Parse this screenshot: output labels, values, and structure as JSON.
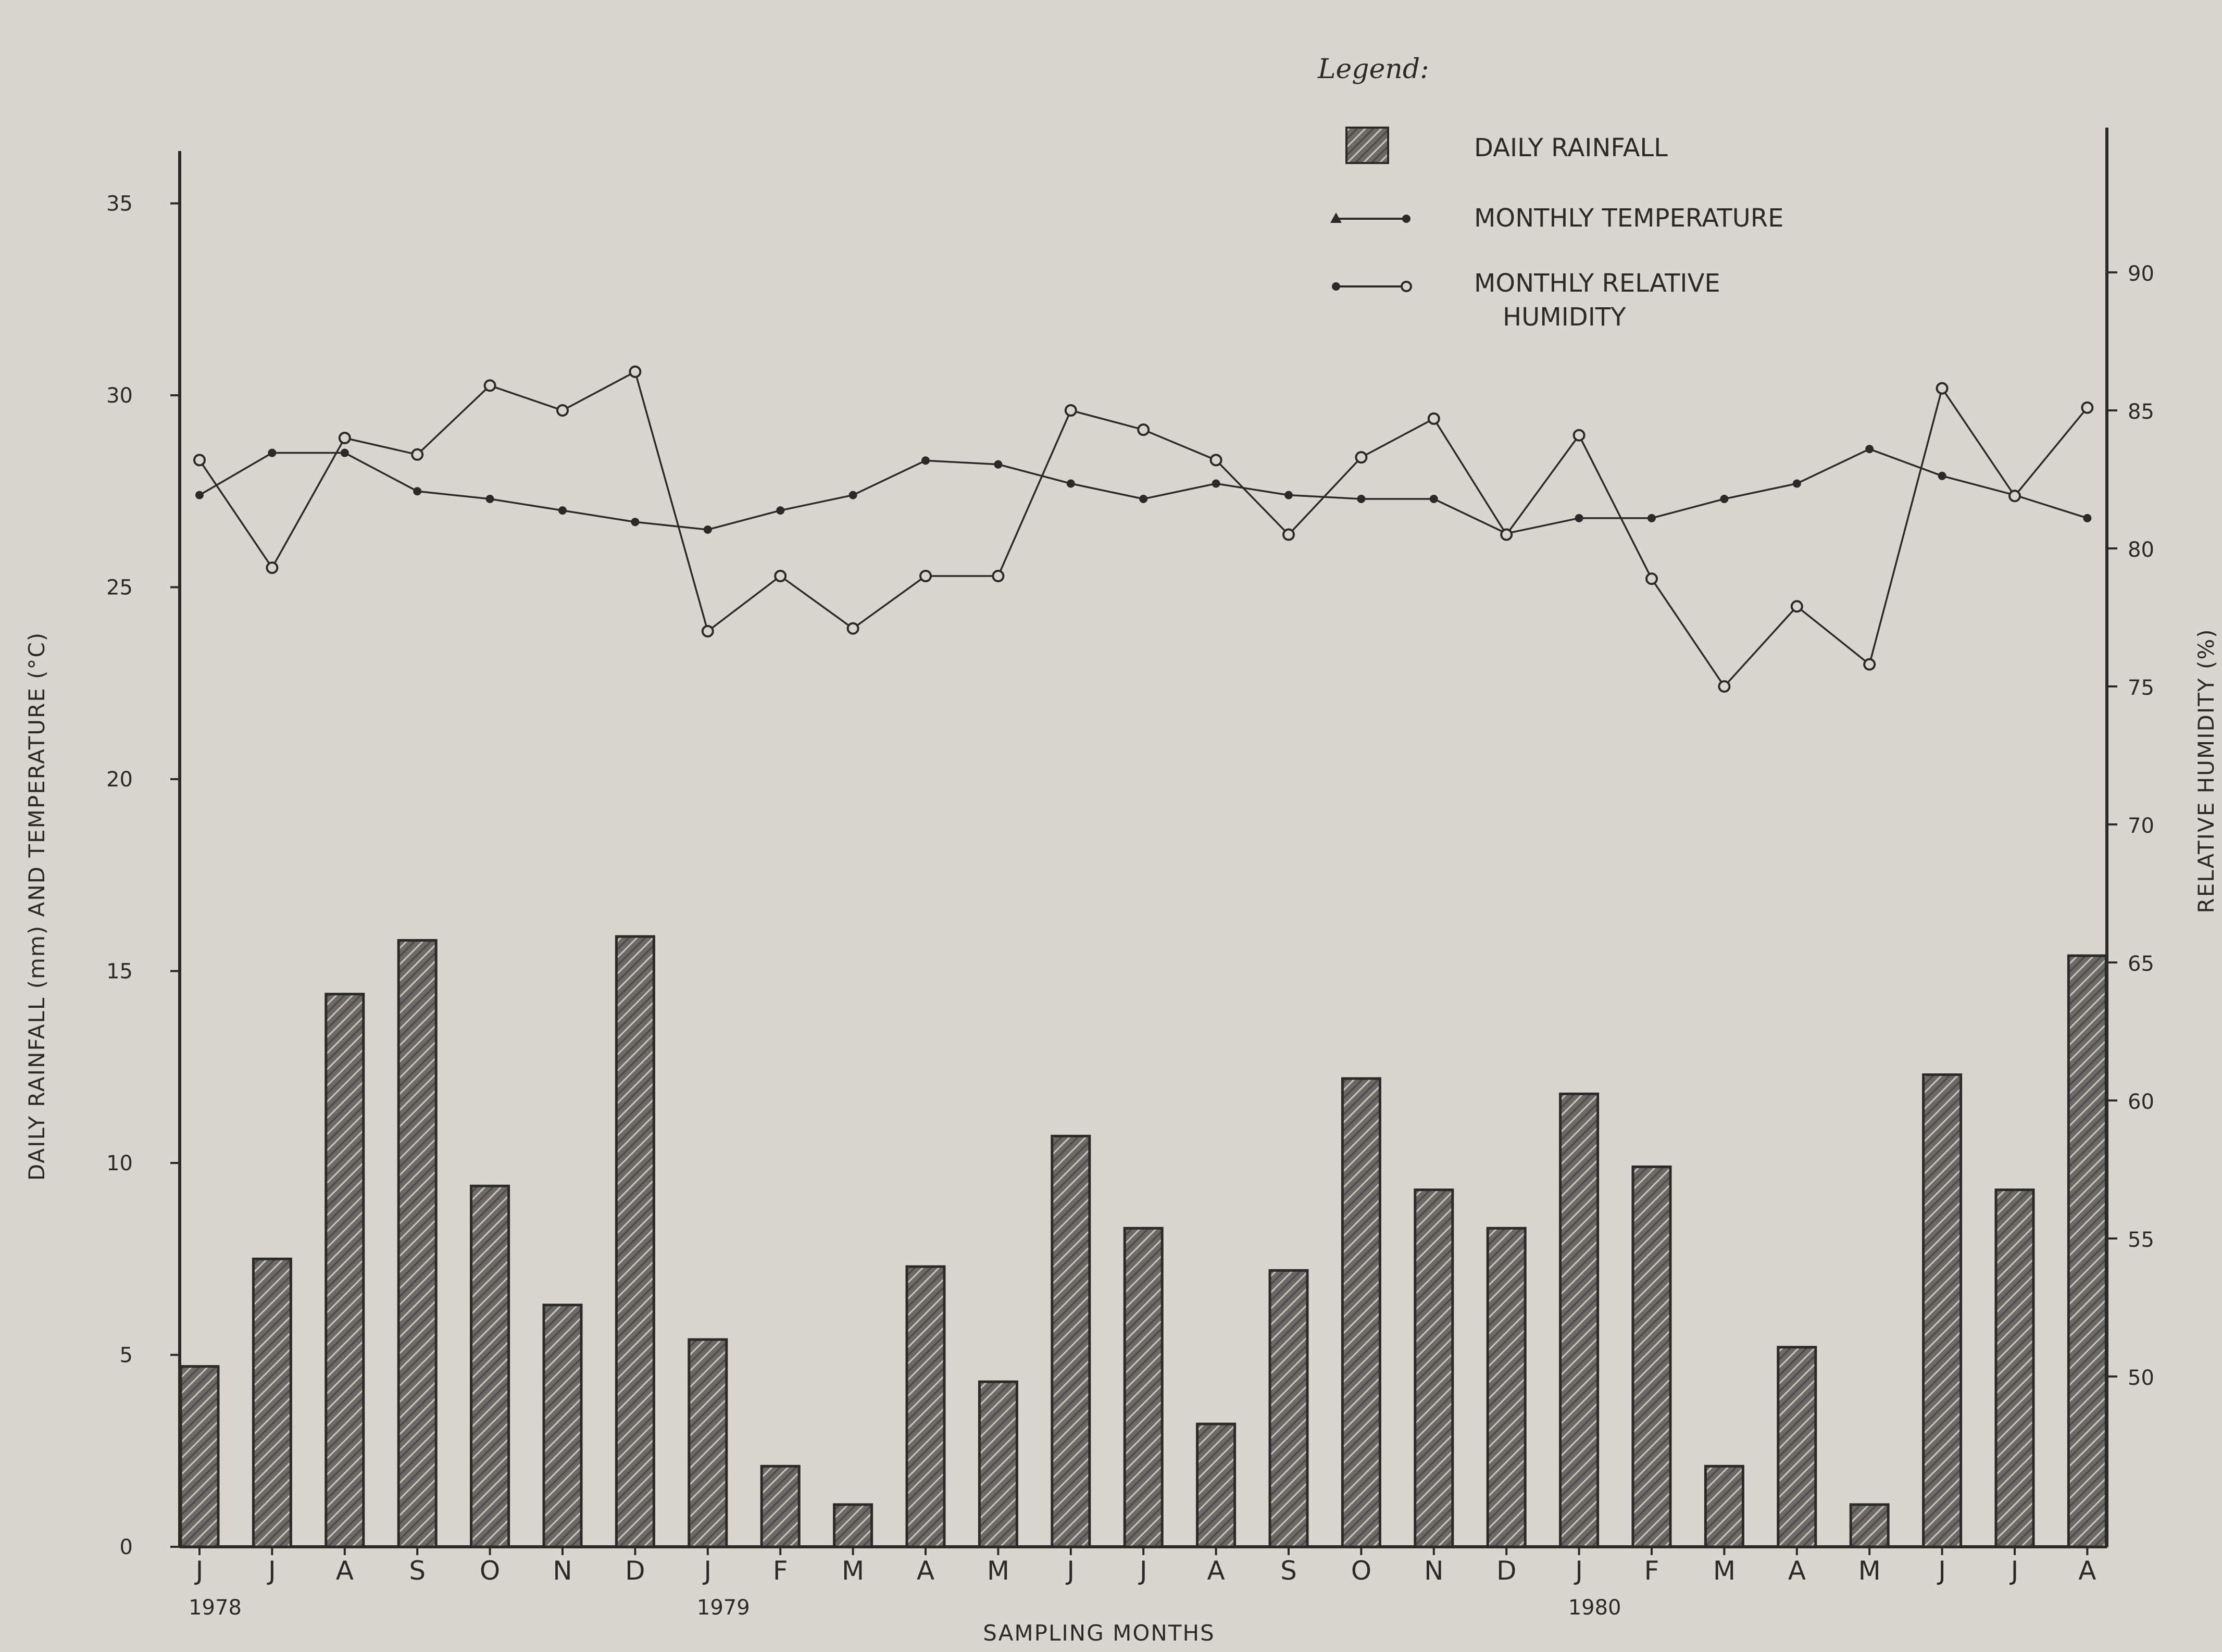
{
  "chart_data": {
    "type": "bar",
    "title": "",
    "legend": {
      "title": "Legend:",
      "placement": "top-right",
      "entries": [
        {
          "key": "rainfall",
          "label": "DAILY RAINFALL"
        },
        {
          "key": "temperature",
          "label": "MONTHLY TEMPERATURE"
        },
        {
          "key": "humidity",
          "label_line1": "MONTHLY RELATIVE",
          "label_line2": "HUMIDITY"
        }
      ]
    },
    "xlabel": "SAMPLING MONTHS",
    "ylabel_left": "DAILY RAINFALL (mm) AND TEMPERATURE (°C)",
    "ylabel_right": "RELATIVE HUMIDITY (%)",
    "ylim_left": [
      0,
      35
    ],
    "yticks_left": [
      "0",
      "5",
      "10",
      "15",
      "20",
      "25",
      "30",
      "35"
    ],
    "ylim_right": [
      45,
      90
    ],
    "yticks_right": [
      "50",
      "55",
      "60",
      "65",
      "70",
      "75",
      "80",
      "85",
      "90"
    ],
    "categories": [
      "J",
      "J",
      "A",
      "S",
      "O",
      "N",
      "D",
      "J",
      "F",
      "M",
      "A",
      "M",
      "J",
      "J",
      "A",
      "S",
      "O",
      "N",
      "D",
      "J",
      "F",
      "M",
      "A",
      "M",
      "J",
      "J",
      "A"
    ],
    "year_labels": [
      {
        "index": 0,
        "label": "1978"
      },
      {
        "index": 7,
        "label": "1979"
      },
      {
        "index": 19,
        "label": "1980"
      }
    ],
    "grid": false,
    "series": [
      {
        "name": "DAILY RAINFALL",
        "type": "bar",
        "axis": "left",
        "values": [
          4.7,
          7.5,
          14.4,
          15.8,
          9.4,
          6.3,
          15.9,
          5.4,
          2.1,
          1.1,
          7.3,
          4.3,
          10.7,
          8.3,
          3.2,
          7.2,
          12.2,
          9.3,
          8.3,
          11.8,
          9.9,
          2.1,
          5.2,
          1.1,
          12.3,
          9.3,
          15.4
        ]
      },
      {
        "name": "MONTHLY TEMPERATURE",
        "type": "line",
        "axis": "left",
        "values": [
          27.4,
          28.5,
          28.5,
          27.5,
          27.3,
          27.0,
          26.7,
          26.5,
          27.0,
          27.4,
          28.3,
          28.2,
          27.7,
          27.3,
          27.7,
          27.4,
          27.3,
          27.3,
          26.4,
          26.8,
          26.8,
          27.3,
          27.7,
          28.6,
          27.9,
          27.4,
          26.8
        ]
      },
      {
        "name": "MONTHLY RELATIVE HUMIDITY",
        "type": "line",
        "axis": "right",
        "values": [
          83.2,
          79.3,
          84.0,
          83.4,
          85.9,
          85.0,
          86.4,
          77.0,
          79.0,
          77.1,
          79.0,
          79.0,
          85.0,
          84.3,
          83.2,
          80.5,
          83.3,
          84.7,
          80.5,
          84.1,
          78.9,
          75.0,
          77.9,
          75.8,
          85.8,
          81.9,
          85.1
        ]
      }
    ],
    "colors": {
      "background": "#d8d6ce",
      "ink": "#2a2a28",
      "bar_fill": "#6b6a66"
    }
  }
}
